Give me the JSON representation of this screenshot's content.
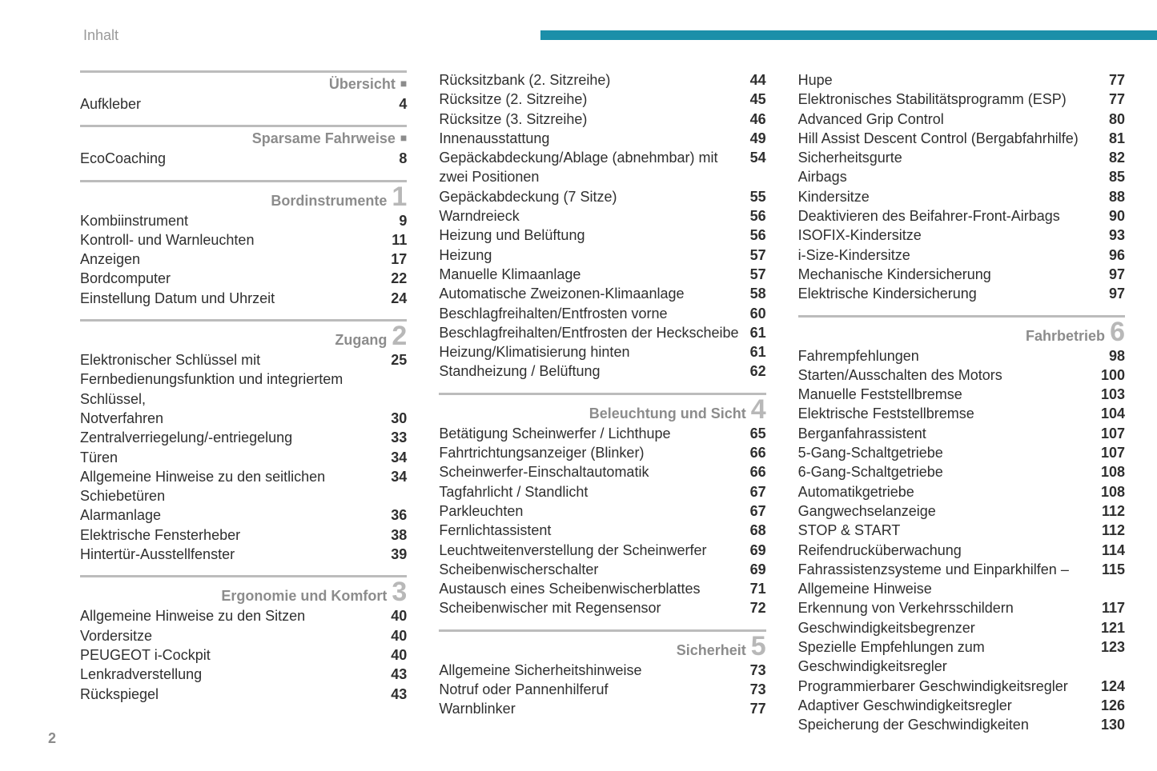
{
  "header": {
    "label": "Inhalt"
  },
  "page_number": "2",
  "colors": {
    "header_bar": "#1b8fa9",
    "section_rule": "#bcbcbc",
    "section_title": "#8c8c8c",
    "section_number": "#b8b8b8",
    "text": "#2f2f2f",
    "background": "#ffffff"
  },
  "columns": [
    {
      "sections": [
        {
          "title": "Übersicht",
          "marker": "bullet",
          "entries": [
            {
              "label": "Aufkleber",
              "page": "4"
            }
          ]
        },
        {
          "title": "Sparsame Fahrweise",
          "marker": "bullet",
          "entries": [
            {
              "label": "EcoCoaching",
              "page": "8"
            }
          ]
        },
        {
          "title": "Bordinstrumente",
          "marker": "1",
          "entries": [
            {
              "label": "Kombiinstrument",
              "page": "9"
            },
            {
              "label": "Kontroll- und Warnleuchten",
              "page": "11"
            },
            {
              "label": "Anzeigen",
              "page": "17"
            },
            {
              "label": "Bordcomputer",
              "page": "22"
            },
            {
              "label": "Einstellung Datum und Uhrzeit",
              "page": "24"
            }
          ]
        },
        {
          "title": "Zugang",
          "marker": "2",
          "entries": [
            {
              "label": "Elektronischer Schlüssel mit Fernbedienungsfunktion und integriertem Schlüssel,",
              "page": "25"
            },
            {
              "label": "Notverfahren",
              "page": "30"
            },
            {
              "label": "Zentralverriegelung/-entriegelung",
              "page": "33"
            },
            {
              "label": "Türen",
              "page": "34"
            },
            {
              "label": "Allgemeine Hinweise zu den seitlichen Schiebetüren",
              "page": "34"
            },
            {
              "label": "Alarmanlage",
              "page": "36"
            },
            {
              "label": "Elektrische Fensterheber",
              "page": "38"
            },
            {
              "label": "Hintertür-Ausstellfenster",
              "page": "39"
            }
          ]
        },
        {
          "title": "Ergonomie und Komfort",
          "marker": "3",
          "entries": [
            {
              "label": "Allgemeine Hinweise zu den Sitzen",
              "page": "40"
            },
            {
              "label": "Vordersitze",
              "page": "40"
            },
            {
              "label": "PEUGEOT i-Cockpit",
              "page": "40"
            },
            {
              "label": "Lenkradverstellung",
              "page": "43"
            },
            {
              "label": "Rückspiegel",
              "page": "43"
            }
          ]
        }
      ]
    },
    {
      "sections": [
        {
          "continuation": true,
          "entries": [
            {
              "label": "Rücksitzbank (2. Sitzreihe)",
              "page": "44"
            },
            {
              "label": "Rücksitze (2. Sitzreihe)",
              "page": "45"
            },
            {
              "label": "Rücksitze (3. Sitzreihe)",
              "page": "46"
            },
            {
              "label": "Innenausstattung",
              "page": "49"
            },
            {
              "label": "Gepäckabdeckung/Ablage (abnehmbar) mit zwei Positionen",
              "page": "54"
            },
            {
              "label": "Gepäckabdeckung (7 Sitze)",
              "page": "55"
            },
            {
              "label": "Warndreieck",
              "page": "56"
            },
            {
              "label": "Heizung und Belüftung",
              "page": "56"
            },
            {
              "label": "Heizung",
              "page": "57"
            },
            {
              "label": "Manuelle Klimaanlage",
              "page": "57"
            },
            {
              "label": "Automatische Zweizonen-Klimaanlage",
              "page": "58"
            },
            {
              "label": "Beschlagfreihalten/Entfrosten vorne",
              "page": "60"
            },
            {
              "label": "Beschlagfreihalten/Entfrosten der Heckscheibe",
              "page": "61"
            },
            {
              "label": "Heizung/Klimatisierung hinten",
              "page": "61"
            },
            {
              "label": "Standheizung / Belüftung",
              "page": "62"
            }
          ]
        },
        {
          "title": "Beleuchtung und Sicht",
          "marker": "4",
          "entries": [
            {
              "label": "Betätigung Scheinwerfer / Lichthupe",
              "page": "65"
            },
            {
              "label": "Fahrtrichtungsanzeiger (Blinker)",
              "page": "66"
            },
            {
              "label": "Scheinwerfer-Einschaltautomatik",
              "page": "66"
            },
            {
              "label": "Tagfahrlicht / Standlicht",
              "page": "67"
            },
            {
              "label": "Parkleuchten",
              "page": "67"
            },
            {
              "label": "Fernlichtassistent",
              "page": "68"
            },
            {
              "label": "Leuchtweitenverstellung der Scheinwerfer",
              "page": "69"
            },
            {
              "label": "Scheibenwischerschalter",
              "page": "69"
            },
            {
              "label": "Austausch eines Scheibenwischerblattes",
              "page": "71"
            },
            {
              "label": "Scheibenwischer mit Regensensor",
              "page": "72"
            }
          ]
        },
        {
          "title": "Sicherheit",
          "marker": "5",
          "entries": [
            {
              "label": "Allgemeine Sicherheitshinweise",
              "page": "73"
            },
            {
              "label": "Notruf oder Pannenhilferuf",
              "page": "73"
            },
            {
              "label": "Warnblinker",
              "page": "77"
            }
          ]
        }
      ]
    },
    {
      "sections": [
        {
          "continuation": true,
          "entries": [
            {
              "label": "Hupe",
              "page": "77"
            },
            {
              "label": "Elektronisches Stabilitätsprogramm (ESP)",
              "page": "77"
            },
            {
              "label": "Advanced Grip Control",
              "page": "80"
            },
            {
              "label": "Hill Assist Descent Control (Bergabfahrhilfe)",
              "page": "81"
            },
            {
              "label": "Sicherheitsgurte",
              "page": "82"
            },
            {
              "label": "Airbags",
              "page": "85"
            },
            {
              "label": "Kindersitze",
              "page": "88"
            },
            {
              "label": "Deaktivieren des Beifahrer-Front-Airbags",
              "page": "90"
            },
            {
              "label": "ISOFIX-Kindersitze",
              "page": "93"
            },
            {
              "label": "i-Size-Kindersitze",
              "page": "96"
            },
            {
              "label": "Mechanische Kindersicherung",
              "page": "97"
            },
            {
              "label": "Elektrische Kindersicherung",
              "page": "97"
            }
          ]
        },
        {
          "title": "Fahrbetrieb",
          "marker": "6",
          "entries": [
            {
              "label": "Fahrempfehlungen",
              "page": "98"
            },
            {
              "label": "Starten/Ausschalten des Motors",
              "page": "100"
            },
            {
              "label": "Manuelle Feststellbremse",
              "page": "103"
            },
            {
              "label": "Elektrische Feststellbremse",
              "page": "104"
            },
            {
              "label": "Berganfahrassistent",
              "page": "107"
            },
            {
              "label": "5-Gang-Schaltgetriebe",
              "page": "107"
            },
            {
              "label": "6-Gang-Schaltgetriebe",
              "page": "108"
            },
            {
              "label": "Automatikgetriebe",
              "page": "108"
            },
            {
              "label": "Gangwechselanzeige",
              "page": "112"
            },
            {
              "label": "STOP & START",
              "page": "112"
            },
            {
              "label": "Reifendrucküberwachung",
              "page": "114"
            },
            {
              "label": "Fahrassistenzsysteme und Einparkhilfen – Allgemeine Hinweise",
              "page": "115"
            },
            {
              "label": "Erkennung von Verkehrsschildern",
              "page": "117"
            },
            {
              "label": "Geschwindigkeitsbegrenzer",
              "page": "121"
            },
            {
              "label": "Spezielle Empfehlungen zum Geschwindigkeitsregler",
              "page": "123"
            },
            {
              "label": "Programmierbarer Geschwindigkeitsregler",
              "page": "124"
            },
            {
              "label": "Adaptiver Geschwindigkeitsregler",
              "page": "126"
            },
            {
              "label": "Speicherung der Geschwindigkeiten",
              "page": "130"
            }
          ]
        }
      ]
    }
  ]
}
